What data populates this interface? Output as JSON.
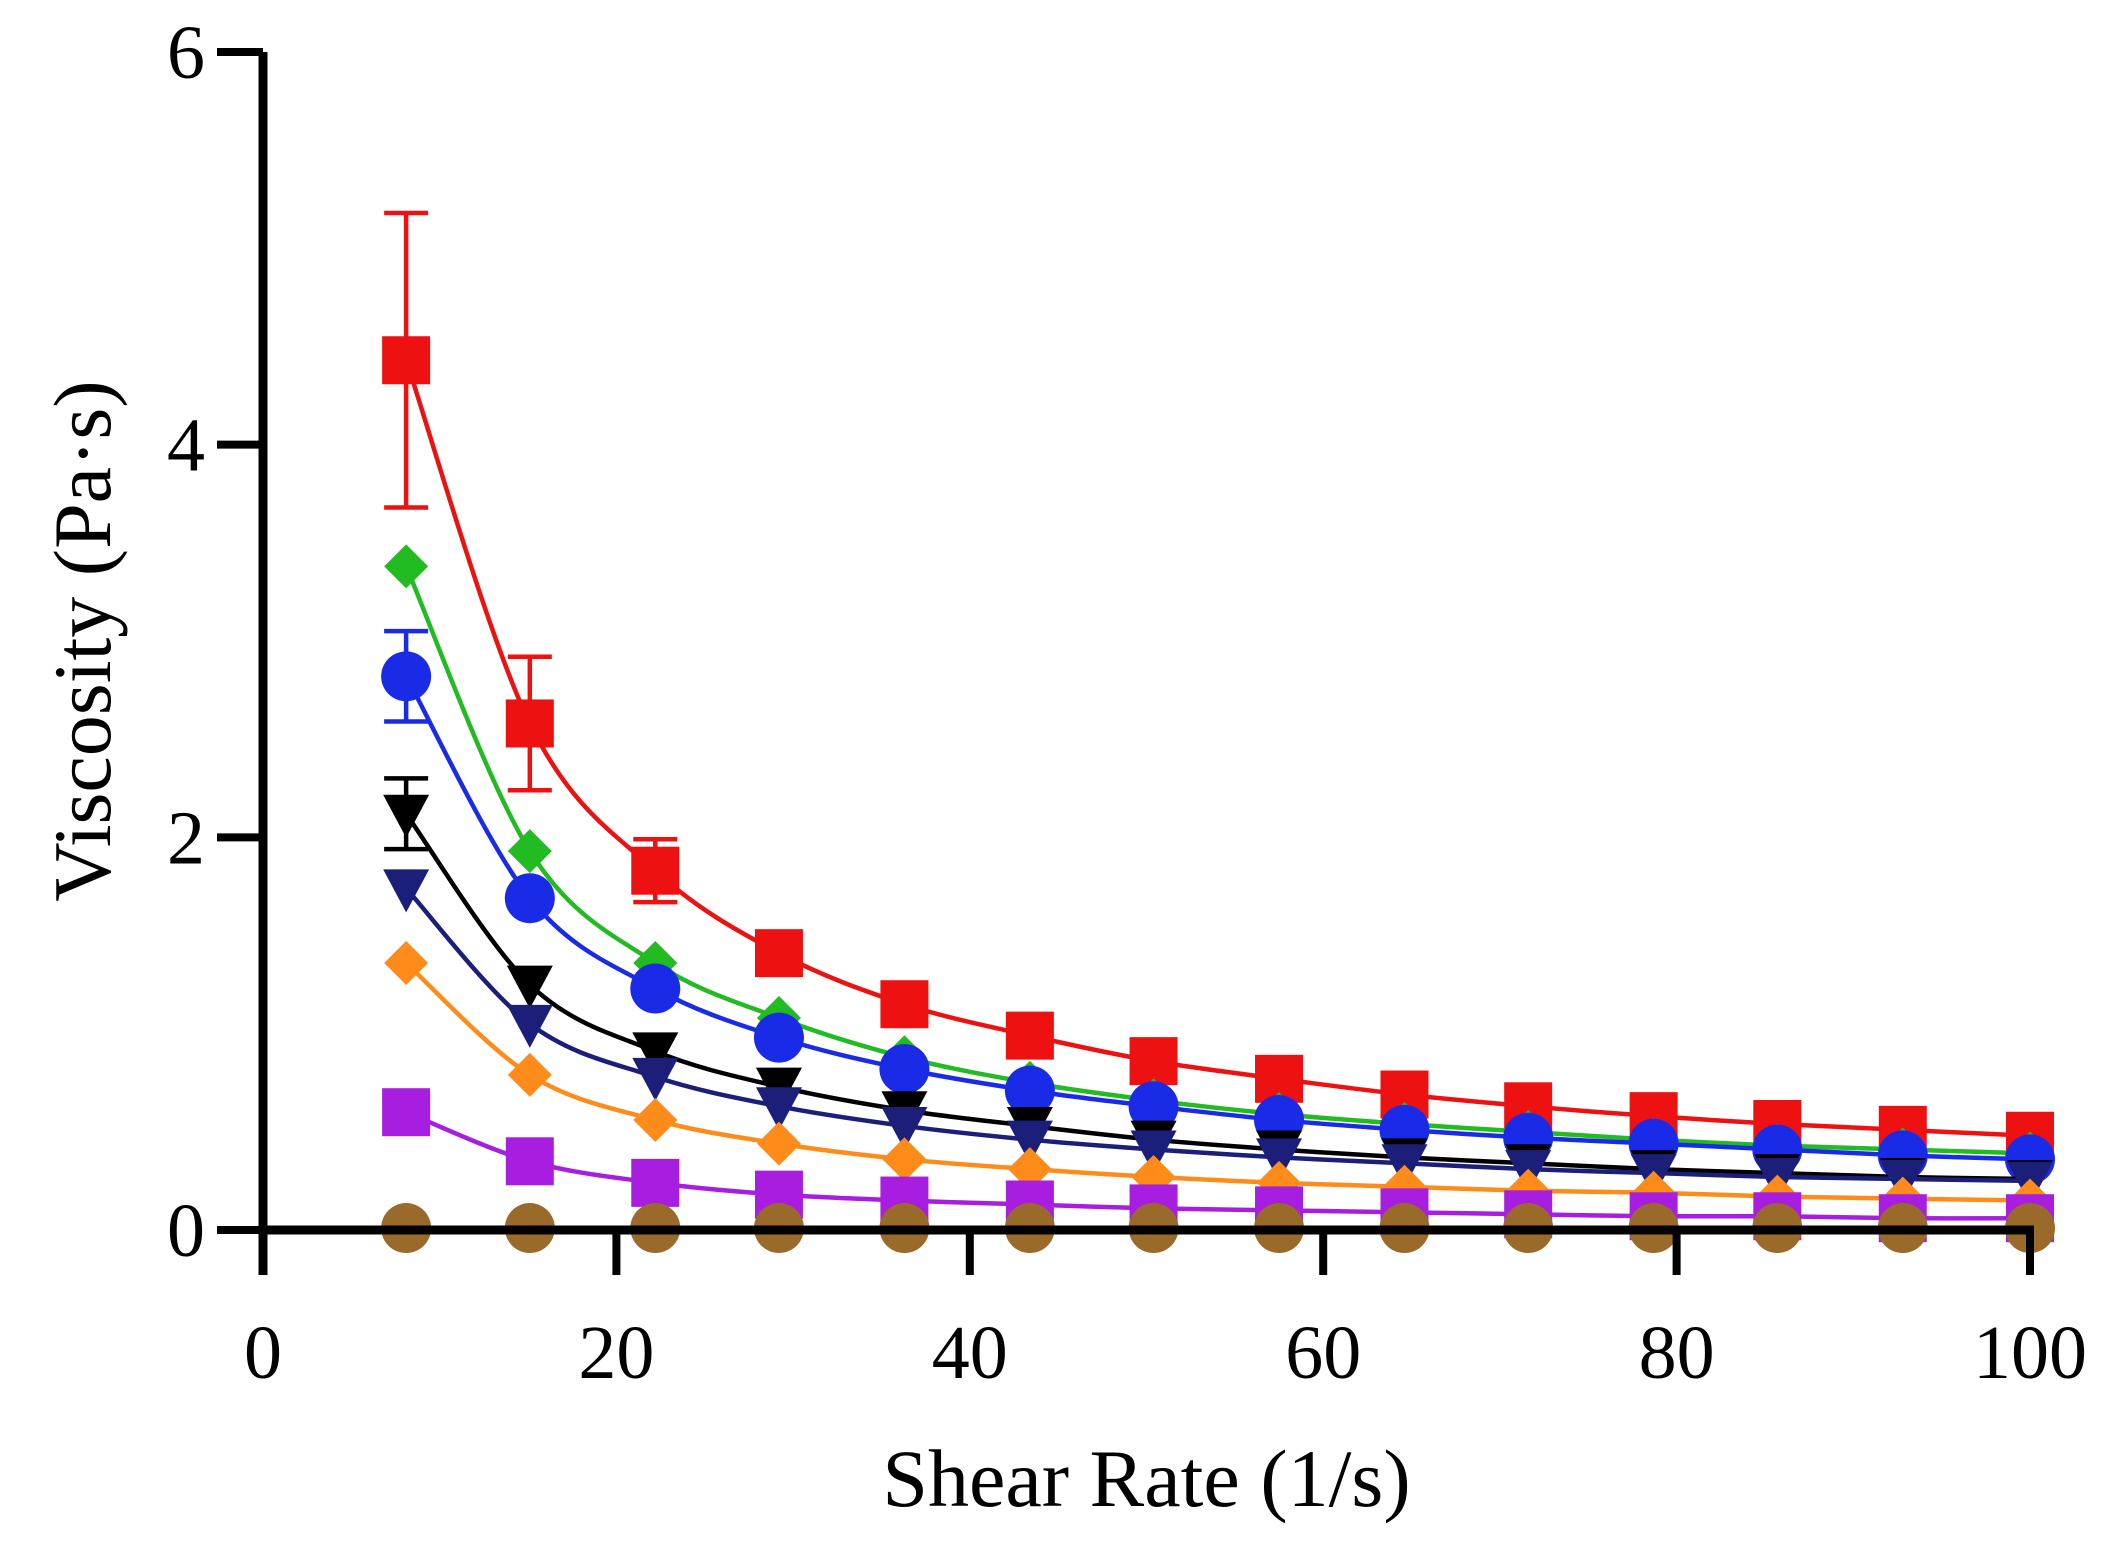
{
  "chart_data": {
    "type": "line",
    "title": "",
    "xlabel": "Shear Rate (1/s)",
    "ylabel": "Viscosity (Pa·s)",
    "xlim": [
      0,
      100
    ],
    "ylim": [
      0,
      6
    ],
    "xticks": [
      0,
      20,
      40,
      60,
      80,
      100
    ],
    "yticks": [
      0,
      2,
      4,
      6
    ],
    "x": [
      8.1,
      15.1,
      22.2,
      29.2,
      36.3,
      43.4,
      50.4,
      57.5,
      64.6,
      71.6,
      78.7,
      85.7,
      92.8,
      100
    ],
    "grid": false,
    "legend": "none",
    "series": [
      {
        "name": "red-square",
        "color": "#ee1111",
        "marker": "square",
        "values": [
          4.43,
          2.58,
          1.83,
          1.41,
          1.15,
          0.99,
          0.86,
          0.77,
          0.69,
          0.63,
          0.58,
          0.54,
          0.51,
          0.48
        ],
        "errors": [
          0.75,
          0.34,
          0.16,
          0,
          0,
          0,
          0,
          0,
          0,
          0,
          0,
          0,
          0,
          0
        ]
      },
      {
        "name": "green-diamond",
        "color": "#22bb22",
        "marker": "diamond",
        "values": [
          3.38,
          1.93,
          1.36,
          1.08,
          0.88,
          0.75,
          0.66,
          0.59,
          0.54,
          0.5,
          0.46,
          0.43,
          0.41,
          0.39
        ],
        "errors": [
          0,
          0,
          0,
          0,
          0,
          0,
          0,
          0,
          0,
          0,
          0,
          0,
          0,
          0
        ]
      },
      {
        "name": "blue-circle",
        "color": "#1a2be8",
        "marker": "circle",
        "values": [
          2.82,
          1.69,
          1.23,
          0.98,
          0.82,
          0.71,
          0.63,
          0.56,
          0.51,
          0.47,
          0.44,
          0.41,
          0.38,
          0.36
        ],
        "errors": [
          0.23,
          0,
          0,
          0,
          0,
          0,
          0,
          0,
          0,
          0,
          0,
          0,
          0,
          0
        ]
      },
      {
        "name": "black-triangle",
        "color": "#000000",
        "marker": "triangle-down",
        "values": [
          2.12,
          1.25,
          0.91,
          0.73,
          0.61,
          0.53,
          0.46,
          0.41,
          0.37,
          0.34,
          0.31,
          0.29,
          0.27,
          0.26
        ],
        "errors": [
          0.18,
          0,
          0,
          0,
          0,
          0,
          0,
          0,
          0,
          0,
          0,
          0,
          0,
          0
        ]
      },
      {
        "name": "navy-triangle",
        "color": "#1b1f7a",
        "marker": "triangle-down",
        "values": [
          1.74,
          1.05,
          0.78,
          0.63,
          0.53,
          0.46,
          0.41,
          0.37,
          0.34,
          0.31,
          0.29,
          0.27,
          0.26,
          0.25
        ],
        "errors": [
          0,
          0,
          0,
          0,
          0,
          0,
          0,
          0,
          0,
          0,
          0,
          0,
          0,
          0
        ]
      },
      {
        "name": "orange-diamond",
        "color": "#ff8c1a",
        "marker": "diamond",
        "values": [
          1.36,
          0.79,
          0.56,
          0.44,
          0.36,
          0.31,
          0.27,
          0.24,
          0.22,
          0.2,
          0.19,
          0.17,
          0.16,
          0.15
        ],
        "errors": [
          0,
          0,
          0,
          0,
          0,
          0,
          0,
          0,
          0,
          0,
          0,
          0,
          0,
          0
        ]
      },
      {
        "name": "purple-square",
        "color": "#a81ee0",
        "marker": "square",
        "values": [
          0.6,
          0.35,
          0.24,
          0.18,
          0.15,
          0.13,
          0.11,
          0.1,
          0.09,
          0.08,
          0.07,
          0.07,
          0.06,
          0.06
        ],
        "errors": [
          0,
          0,
          0,
          0,
          0,
          0,
          0,
          0,
          0,
          0,
          0,
          0,
          0,
          0
        ]
      },
      {
        "name": "brown-circle",
        "color": "#9a6a2a",
        "marker": "circle",
        "values": [
          0.01,
          0.01,
          0.01,
          0.01,
          0.01,
          0.01,
          0.01,
          0.01,
          0.01,
          0.01,
          0.01,
          0.01,
          0.01,
          0.01
        ],
        "errors": [
          0,
          0,
          0,
          0,
          0,
          0,
          0,
          0,
          0,
          0,
          0,
          0,
          0,
          0
        ]
      }
    ]
  }
}
